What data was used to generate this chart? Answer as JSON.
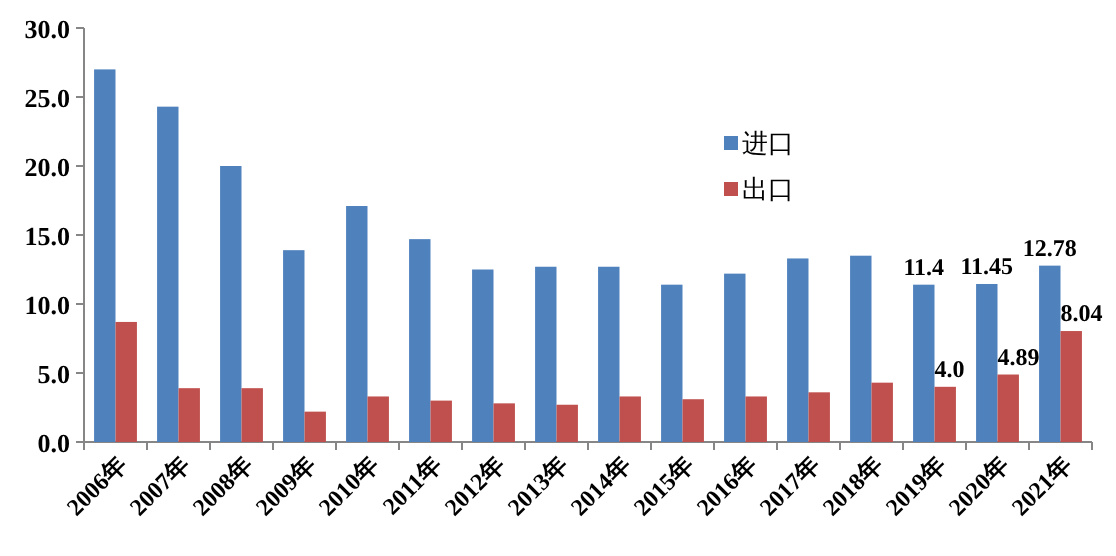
{
  "chart_data": {
    "type": "bar",
    "categories": [
      "2006年",
      "2007年",
      "2008年",
      "2009年",
      "2010年",
      "2011年",
      "2012年",
      "2013年",
      "2014年",
      "2015年",
      "2016年",
      "2017年",
      "2018年",
      "2019年",
      "2020年",
      "2021年"
    ],
    "series": [
      {
        "name": "进口",
        "color": "#4f81bd",
        "values": [
          27.0,
          24.3,
          20.0,
          13.9,
          17.1,
          14.7,
          12.5,
          12.7,
          12.7,
          11.4,
          12.2,
          13.3,
          13.5,
          11.4,
          11.45,
          12.78
        ],
        "value_labels": [
          null,
          null,
          null,
          null,
          null,
          null,
          null,
          null,
          null,
          null,
          null,
          null,
          null,
          "11.4",
          "11.45",
          "12.78"
        ]
      },
      {
        "name": "出口",
        "color": "#c0504d",
        "values": [
          8.7,
          3.9,
          3.9,
          2.2,
          3.3,
          3.0,
          2.8,
          2.7,
          3.3,
          3.1,
          3.3,
          3.6,
          4.3,
          4.0,
          4.89,
          8.04
        ],
        "value_labels": [
          null,
          null,
          null,
          null,
          null,
          null,
          null,
          null,
          null,
          null,
          null,
          null,
          null,
          "4.0",
          "4.89",
          "8.04"
        ]
      }
    ],
    "ylim": [
      0,
      30
    ],
    "yticks": [
      {
        "value": 0,
        "label": "0.0"
      },
      {
        "value": 5,
        "label": "5.0"
      },
      {
        "value": 10,
        "label": "10.0"
      },
      {
        "value": 15,
        "label": "15.0"
      },
      {
        "value": 20,
        "label": "20.0"
      },
      {
        "value": 25,
        "label": "25.0"
      },
      {
        "value": 30,
        "label": "30.0"
      }
    ],
    "grid": false,
    "legend": "top right"
  }
}
